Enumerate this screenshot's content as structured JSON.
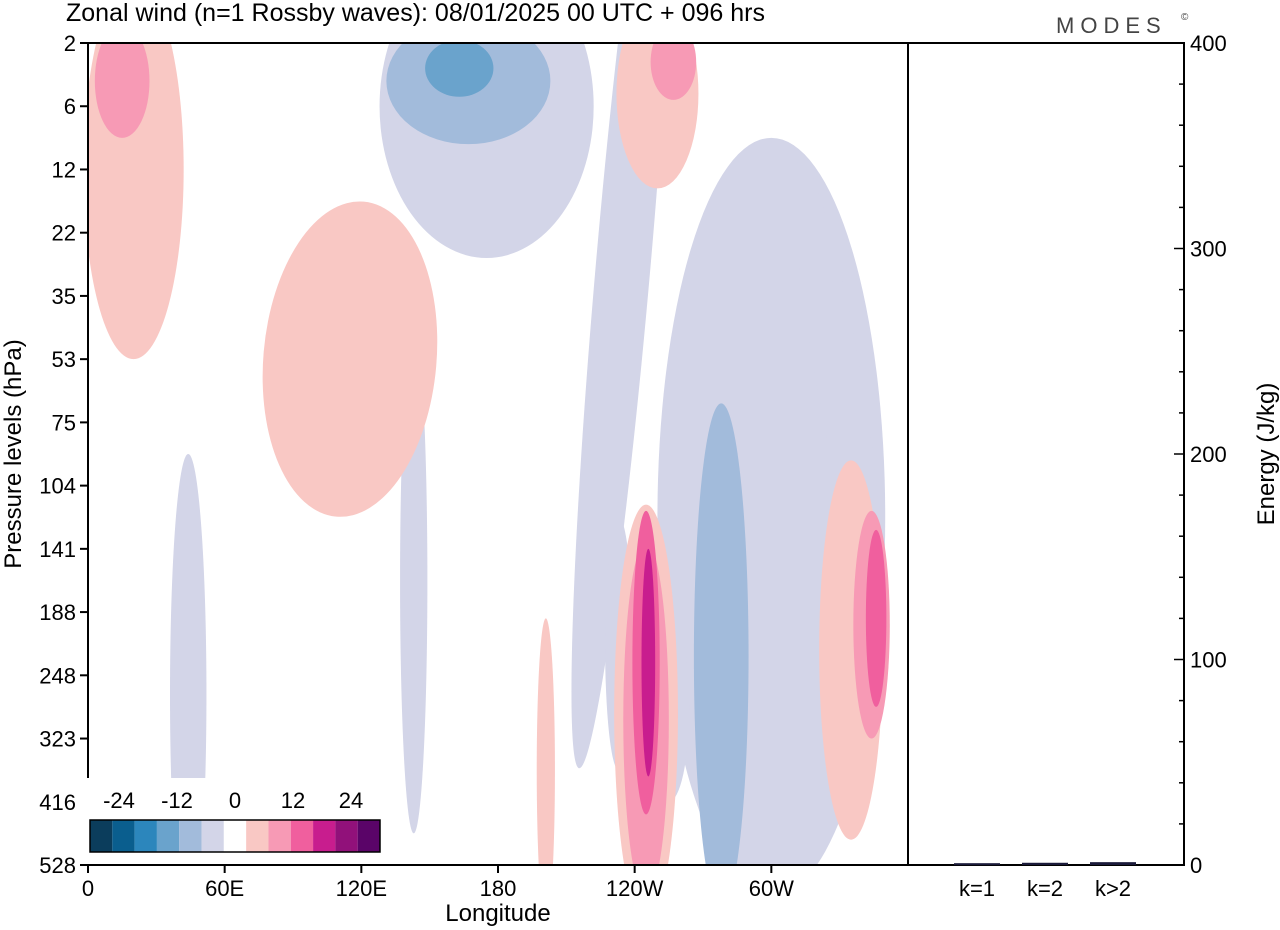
{
  "chart_data": {
    "type": "heatmap",
    "title": "Zonal wind (n=1 Rossby waves):  08/01/2025  00 UTC  + 096 hrs",
    "brand": "MODES",
    "brand_mark": "©",
    "xlabel": "Longitude",
    "ylabel": "Pressure levels (hPa)",
    "x_ticks": [
      "0",
      "60E",
      "120E",
      "180",
      "120W",
      "60W"
    ],
    "y_ticks": [
      "2",
      "6",
      "12",
      "22",
      "35",
      "53",
      "75",
      "104",
      "141",
      "188",
      "248",
      "323",
      "416",
      "528"
    ],
    "colorbar": {
      "labels": [
        "-24",
        "-12",
        "0",
        "12",
        "24"
      ],
      "levels": [
        -30,
        -25,
        -20,
        -15,
        -10,
        -5,
        0,
        5,
        10,
        15,
        20,
        25,
        30
      ],
      "colors": [
        "#0b3d5c",
        "#0a5e8e",
        "#2c86bc",
        "#6aa3cc",
        "#a2bbdb",
        "#d3d5e8",
        "#ffffff",
        "#f9c8c4",
        "#f79ab5",
        "#f05f9e",
        "#c81d8e",
        "#91117a",
        "#5a0468"
      ]
    },
    "contours": [
      {
        "level": -5,
        "color": "#d3d5e8",
        "lon": 300,
        "lev": 7.5,
        "wlon": 50,
        "wlev": 6,
        "rot": 0
      },
      {
        "level": -5,
        "color": "#d3d5e8",
        "lon": 235,
        "lev": 3.5,
        "wlon": 12,
        "wlev": 8,
        "rot": 5
      },
      {
        "level": -5,
        "color": "#d3d5e8",
        "lon": 255,
        "lev": 10.5,
        "wlon": 9,
        "wlev": 1.5,
        "rot": 0
      },
      {
        "level": -5,
        "color": "#d3d5e8",
        "lon": 143,
        "lev": 8.5,
        "wlon": 6,
        "wlev": 4,
        "rot": 0
      },
      {
        "level": -5,
        "color": "#d3d5e8",
        "lon": 44,
        "lev": 10.3,
        "wlon": 8,
        "wlev": 3.8,
        "rot": 0
      },
      {
        "level": -5,
        "color": "#d3d5e8",
        "lon": 175,
        "lev": 1,
        "wlon": 47,
        "wlev": 2.4,
        "rot": 0
      },
      {
        "level": -5,
        "color": "#d3d5e8",
        "lon": 233,
        "lev": 9.5,
        "wlon": 6,
        "wlev": 2,
        "rot": 0
      },
      {
        "level": -5,
        "color": "#d3d5e8",
        "lon": 329,
        "lev": 5.2,
        "wlon": 10,
        "wlev": 3.4,
        "rot": -10
      },
      {
        "level": -10,
        "color": "#a2bbdb",
        "lon": 278,
        "lev": 9.7,
        "wlon": 12,
        "wlev": 4,
        "rot": 0
      },
      {
        "level": -10,
        "color": "#a2bbdb",
        "lon": 167,
        "lev": 0.6,
        "wlon": 36,
        "wlev": 1,
        "rot": 0
      },
      {
        "level": -15,
        "color": "#6aa3cc",
        "lon": 163,
        "lev": 0.4,
        "wlon": 15,
        "wlev": 0.45,
        "rot": 0
      },
      {
        "level": 5,
        "color": "#f9c8c4",
        "lon": 20,
        "lev": 2,
        "wlon": 22,
        "wlev": 3,
        "rot": 0
      },
      {
        "level": 5,
        "color": "#f9c8c4",
        "lon": 115,
        "lev": 5,
        "wlon": 38,
        "wlev": 2.5,
        "rot": 5
      },
      {
        "level": 5,
        "color": "#f9c8c4",
        "lon": 245,
        "lev": 10.6,
        "wlon": 14,
        "wlev": 3.3,
        "rot": 0
      },
      {
        "level": 5,
        "color": "#f9c8c4",
        "lon": 335,
        "lev": 9.6,
        "wlon": 14,
        "wlev": 3,
        "rot": 0
      },
      {
        "level": 5,
        "color": "#f9c8c4",
        "lon": 250,
        "lev": 0.8,
        "wlon": 18,
        "wlev": 1.5,
        "rot": 0
      },
      {
        "level": 5,
        "color": "#f9c8c4",
        "lon": 201,
        "lev": 11.5,
        "wlon": 4,
        "wlev": 2.4,
        "rot": 0
      },
      {
        "level": 10,
        "color": "#f79ab5",
        "lon": 245,
        "lev": 10.7,
        "wlon": 10,
        "wlev": 2.8,
        "rot": 0
      },
      {
        "level": 10,
        "color": "#f79ab5",
        "lon": 344,
        "lev": 9.2,
        "wlon": 8,
        "wlev": 1.8,
        "rot": 0
      },
      {
        "level": 10,
        "color": "#f79ab5",
        "lon": 15,
        "lev": 0.6,
        "wlon": 12,
        "wlev": 0.9,
        "rot": 0
      },
      {
        "level": 10,
        "color": "#f79ab5",
        "lon": 257,
        "lev": 0.3,
        "wlon": 10,
        "wlev": 0.6,
        "rot": 0
      },
      {
        "level": 15,
        "color": "#f05f9e",
        "lon": 245,
        "lev": 9.8,
        "wlon": 6,
        "wlev": 2.4,
        "rot": 0
      },
      {
        "level": 15,
        "color": "#f05f9e",
        "lon": 346,
        "lev": 9.1,
        "wlon": 4.5,
        "wlev": 1.4,
        "rot": 0
      },
      {
        "level": 20,
        "color": "#c81d8e",
        "lon": 246,
        "lev": 9.8,
        "wlon": 3,
        "wlev": 1.8,
        "rot": 0
      }
    ],
    "energy_panel": {
      "ylabel": "Energy (J/kg)",
      "ylim": [
        0,
        400
      ],
      "y_ticks": [
        "0",
        "100",
        "200",
        "300",
        "400"
      ],
      "categories": [
        "k=1",
        "k=2",
        "k>2"
      ],
      "values": [
        0.4,
        0.6,
        0.9
      ]
    }
  }
}
